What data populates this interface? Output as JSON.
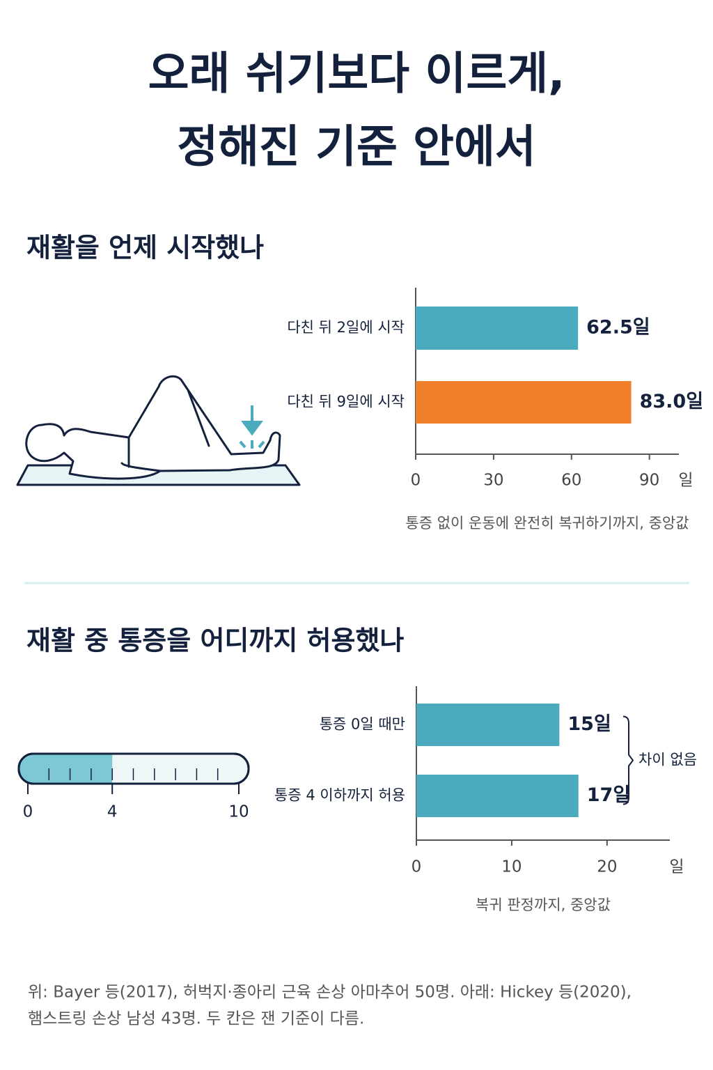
{
  "title_lines": [
    "오래 쉬기보다 이르게,",
    "정해진 기준 안에서"
  ],
  "chart_data": [
    {
      "type": "bar",
      "title": "재활을 언제 시작했나",
      "categories": [
        "다친 뒤 2일에 시작",
        "다친 뒤 9일에 시작"
      ],
      "values": [
        62.5,
        83.0
      ],
      "value_labels": [
        "62.5일",
        "83.0일"
      ],
      "colors": [
        "#4aabbf",
        "#f07f2a"
      ],
      "xlim": [
        0,
        100
      ],
      "xticks": [
        0,
        30,
        60,
        90
      ],
      "x_unit": "일",
      "xlabel": "통증 없이 운동에 완전히 복귀하기까지, 중앙값"
    },
    {
      "type": "bar",
      "title": "재활 중 통증을 어디까지 허용했나",
      "categories": [
        "통증 0일 때만",
        "통증 4 이하까지 허용"
      ],
      "values": [
        15,
        17
      ],
      "value_labels": [
        "15일",
        "17일"
      ],
      "color": "#4aabbf",
      "xlim": [
        0,
        26
      ],
      "xticks": [
        0,
        10,
        20
      ],
      "x_unit": "일",
      "xlabel": "복귀 판정까지, 중앙값",
      "annotation": "차이 없음"
    }
  ],
  "pain_scale": {
    "lim": [
      0,
      10
    ],
    "labels": [
      0,
      4,
      10
    ],
    "fill": 4
  },
  "footnote_lines": [
    "위: Bayer 등(2017), 허벅지·종아리 근육 손상 아마추어 50명. 아래: Hickey 등(2020),",
    "햄스트링 손상 남성 43명. 두 칸은 잰 기준이 다름."
  ]
}
